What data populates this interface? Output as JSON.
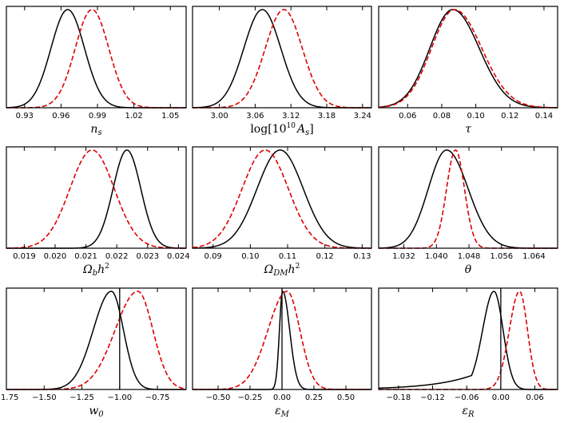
{
  "chart_data": [
    {
      "type": "line",
      "id": "ns",
      "xlabel_main": "n",
      "xlabel_sub": "s",
      "xlabel_sup": "",
      "xlim": [
        0.915,
        1.063
      ],
      "ticks": [
        0.93,
        0.96,
        0.99,
        1.02,
        1.05
      ],
      "tick_labels": [
        "0.93",
        "0.96",
        "0.99",
        "1.02",
        "1.05"
      ],
      "vline": null,
      "series": [
        {
          "name": "solid",
          "style": "solid",
          "color": "#000000",
          "shape": "gauss",
          "peak": 0.9655,
          "sigma_left": 0.0138,
          "sigma_right": 0.0138
        },
        {
          "name": "dashed",
          "style": "dashed",
          "color": "#dd0000",
          "shape": "gauss",
          "peak": 0.9855,
          "sigma_left": 0.0138,
          "sigma_right": 0.0138
        }
      ]
    },
    {
      "type": "line",
      "id": "As",
      "xlabel_main": "log[10",
      "xlabel_sup": "10",
      "xlabel_mid": "A",
      "xlabel_sub": "s",
      "xlabel_end": "]",
      "xlim": [
        2.955,
        3.255
      ],
      "ticks": [
        3.0,
        3.06,
        3.12,
        3.18,
        3.24
      ],
      "tick_labels": [
        "3.00",
        "3.06",
        "3.12",
        "3.18",
        "3.24"
      ],
      "vline": null,
      "series": [
        {
          "name": "solid",
          "style": "solid",
          "color": "#000000",
          "shape": "gauss",
          "peak": 3.072,
          "sigma_left": 0.031,
          "sigma_right": 0.031
        },
        {
          "name": "dashed",
          "style": "dashed",
          "color": "#dd0000",
          "shape": "gauss",
          "peak": 3.108,
          "sigma_left": 0.031,
          "sigma_right": 0.031
        }
      ]
    },
    {
      "type": "line",
      "id": "tau",
      "xlabel_main": "τ",
      "xlabel_sub": "",
      "xlabel_sup": "",
      "xlim": [
        0.043,
        0.148
      ],
      "ticks": [
        0.06,
        0.08,
        0.1,
        0.12,
        0.14
      ],
      "tick_labels": [
        "0.06",
        "0.08",
        "0.10",
        "0.12",
        "0.14"
      ],
      "vline": null,
      "series": [
        {
          "name": "solid",
          "style": "solid",
          "color": "#000000",
          "shape": "gauss",
          "peak": 0.0865,
          "sigma_left": 0.0135,
          "sigma_right": 0.0155
        },
        {
          "name": "dashed",
          "style": "dashed",
          "color": "#dd0000",
          "shape": "gauss",
          "peak": 0.0875,
          "sigma_left": 0.0135,
          "sigma_right": 0.016
        }
      ]
    },
    {
      "type": "line",
      "id": "omegab",
      "xlabel_main": "Ω",
      "xlabel_sub": "b",
      "xlabel_mid": "h",
      "xlabel_sup": "2",
      "xlim": [
        0.01842,
        0.02425
      ],
      "ticks": [
        0.019,
        0.02,
        0.021,
        0.022,
        0.023,
        0.024
      ],
      "tick_labels": [
        "0.019",
        "0.020",
        "0.021",
        "0.022",
        "0.023",
        "0.024"
      ],
      "vline": null,
      "series": [
        {
          "name": "solid",
          "style": "solid",
          "color": "#000000",
          "shape": "gauss",
          "peak": 0.02233,
          "sigma_left": 0.00045,
          "sigma_right": 0.00045
        },
        {
          "name": "dashed",
          "style": "dashed",
          "color": "#dd0000",
          "shape": "gauss",
          "peak": 0.0212,
          "sigma_left": 0.00072,
          "sigma_right": 0.00072
        }
      ]
    },
    {
      "type": "line",
      "id": "omegadm",
      "xlabel_main": "Ω",
      "xlabel_sub": "DM",
      "xlabel_mid": "h",
      "xlabel_sup": "2",
      "xlim": [
        0.0845,
        0.1325
      ],
      "ticks": [
        0.09,
        0.1,
        0.11,
        0.12,
        0.13
      ],
      "tick_labels": [
        "0.09",
        "0.10",
        "0.11",
        "0.12",
        "0.13"
      ],
      "vline": null,
      "series": [
        {
          "name": "solid",
          "style": "solid",
          "color": "#000000",
          "shape": "gauss",
          "peak": 0.108,
          "sigma_left": 0.0062,
          "sigma_right": 0.0062
        },
        {
          "name": "dashed",
          "style": "dashed",
          "color": "#dd0000",
          "shape": "gauss",
          "peak": 0.104,
          "sigma_left": 0.0062,
          "sigma_right": 0.0062
        }
      ]
    },
    {
      "type": "line",
      "id": "theta",
      "xlabel_main": "θ",
      "xlabel_sub": "",
      "xlabel_sup": "",
      "xlim": [
        1.0258,
        1.0698
      ],
      "ticks": [
        1.032,
        1.04,
        1.048,
        1.056,
        1.064
      ],
      "tick_labels": [
        "1.032",
        "1.040",
        "1.048",
        "1.056",
        "1.064"
      ],
      "vline": null,
      "series": [
        {
          "name": "solid",
          "style": "solid",
          "color": "#000000",
          "shape": "gauss",
          "peak": 1.0425,
          "sigma_left": 0.0045,
          "sigma_right": 0.0053
        },
        {
          "name": "dashed",
          "style": "dashed",
          "color": "#dd0000",
          "shape": "gauss",
          "peak": 1.0447,
          "sigma_left": 0.0022,
          "sigma_right": 0.0022
        }
      ]
    },
    {
      "type": "line",
      "id": "w0",
      "xlabel_main": "w",
      "xlabel_sub": "0",
      "xlabel_sup": "",
      "xlim": [
        -1.75,
        -0.56
      ],
      "ticks": [
        -1.75,
        -1.5,
        -1.25,
        -1.0,
        -0.75
      ],
      "tick_labels": [
        "−1.75",
        "−1.50",
        "−1.25",
        "−1.00",
        "−0.75"
      ],
      "vline": -1.0,
      "series": [
        {
          "name": "solid",
          "style": "solid",
          "color": "#000000",
          "shape": "gauss",
          "peak": -1.055,
          "sigma_left": 0.12,
          "sigma_right": 0.08
        },
        {
          "name": "dashed",
          "style": "dashed",
          "color": "#dd0000",
          "shape": "gauss",
          "peak": -0.88,
          "sigma_left": 0.15,
          "sigma_right": 0.1
        }
      ]
    },
    {
      "type": "line",
      "id": "epsM",
      "xlabel_main": "ε",
      "xlabel_sub": "M",
      "xlabel_sup": "",
      "xlim": [
        -0.7,
        0.7
      ],
      "ticks": [
        -0.5,
        -0.25,
        0.0,
        0.25,
        0.5
      ],
      "tick_labels": [
        "−0.50",
        "−0.25",
        "0.00",
        "0.25",
        "0.50"
      ],
      "vline": 0.0,
      "series": [
        {
          "name": "solid",
          "style": "solid",
          "color": "#000000",
          "shape": "gauss",
          "peak": 0.005,
          "sigma_left": 0.025,
          "sigma_right": 0.055
        },
        {
          "name": "dashed",
          "style": "dashed",
          "color": "#dd0000",
          "shape": "gauss",
          "peak": 0.04,
          "sigma_left": 0.15,
          "sigma_right": 0.1
        }
      ]
    },
    {
      "type": "line",
      "id": "epsR",
      "xlabel_main": "ε",
      "xlabel_sub": "R",
      "xlabel_sup": "",
      "xlim": [
        -0.215,
        0.1
      ],
      "ticks": [
        -0.18,
        -0.12,
        -0.06,
        0.0,
        0.06
      ],
      "tick_labels": [
        "−0.18",
        "−0.12",
        "−0.06",
        "0.00",
        "0.06"
      ],
      "vline": 0.0,
      "series": [
        {
          "name": "solid",
          "style": "solid",
          "color": "#000000",
          "shape": "skewtail",
          "peak": -0.012,
          "sigma_left": 0.02,
          "sigma_right": 0.016,
          "tail_amp": 0.25,
          "tail_scale": 0.07
        },
        {
          "name": "dashed",
          "style": "dashed",
          "color": "#dd0000",
          "shape": "gauss",
          "peak": 0.033,
          "sigma_left": 0.018,
          "sigma_right": 0.014
        }
      ]
    }
  ]
}
